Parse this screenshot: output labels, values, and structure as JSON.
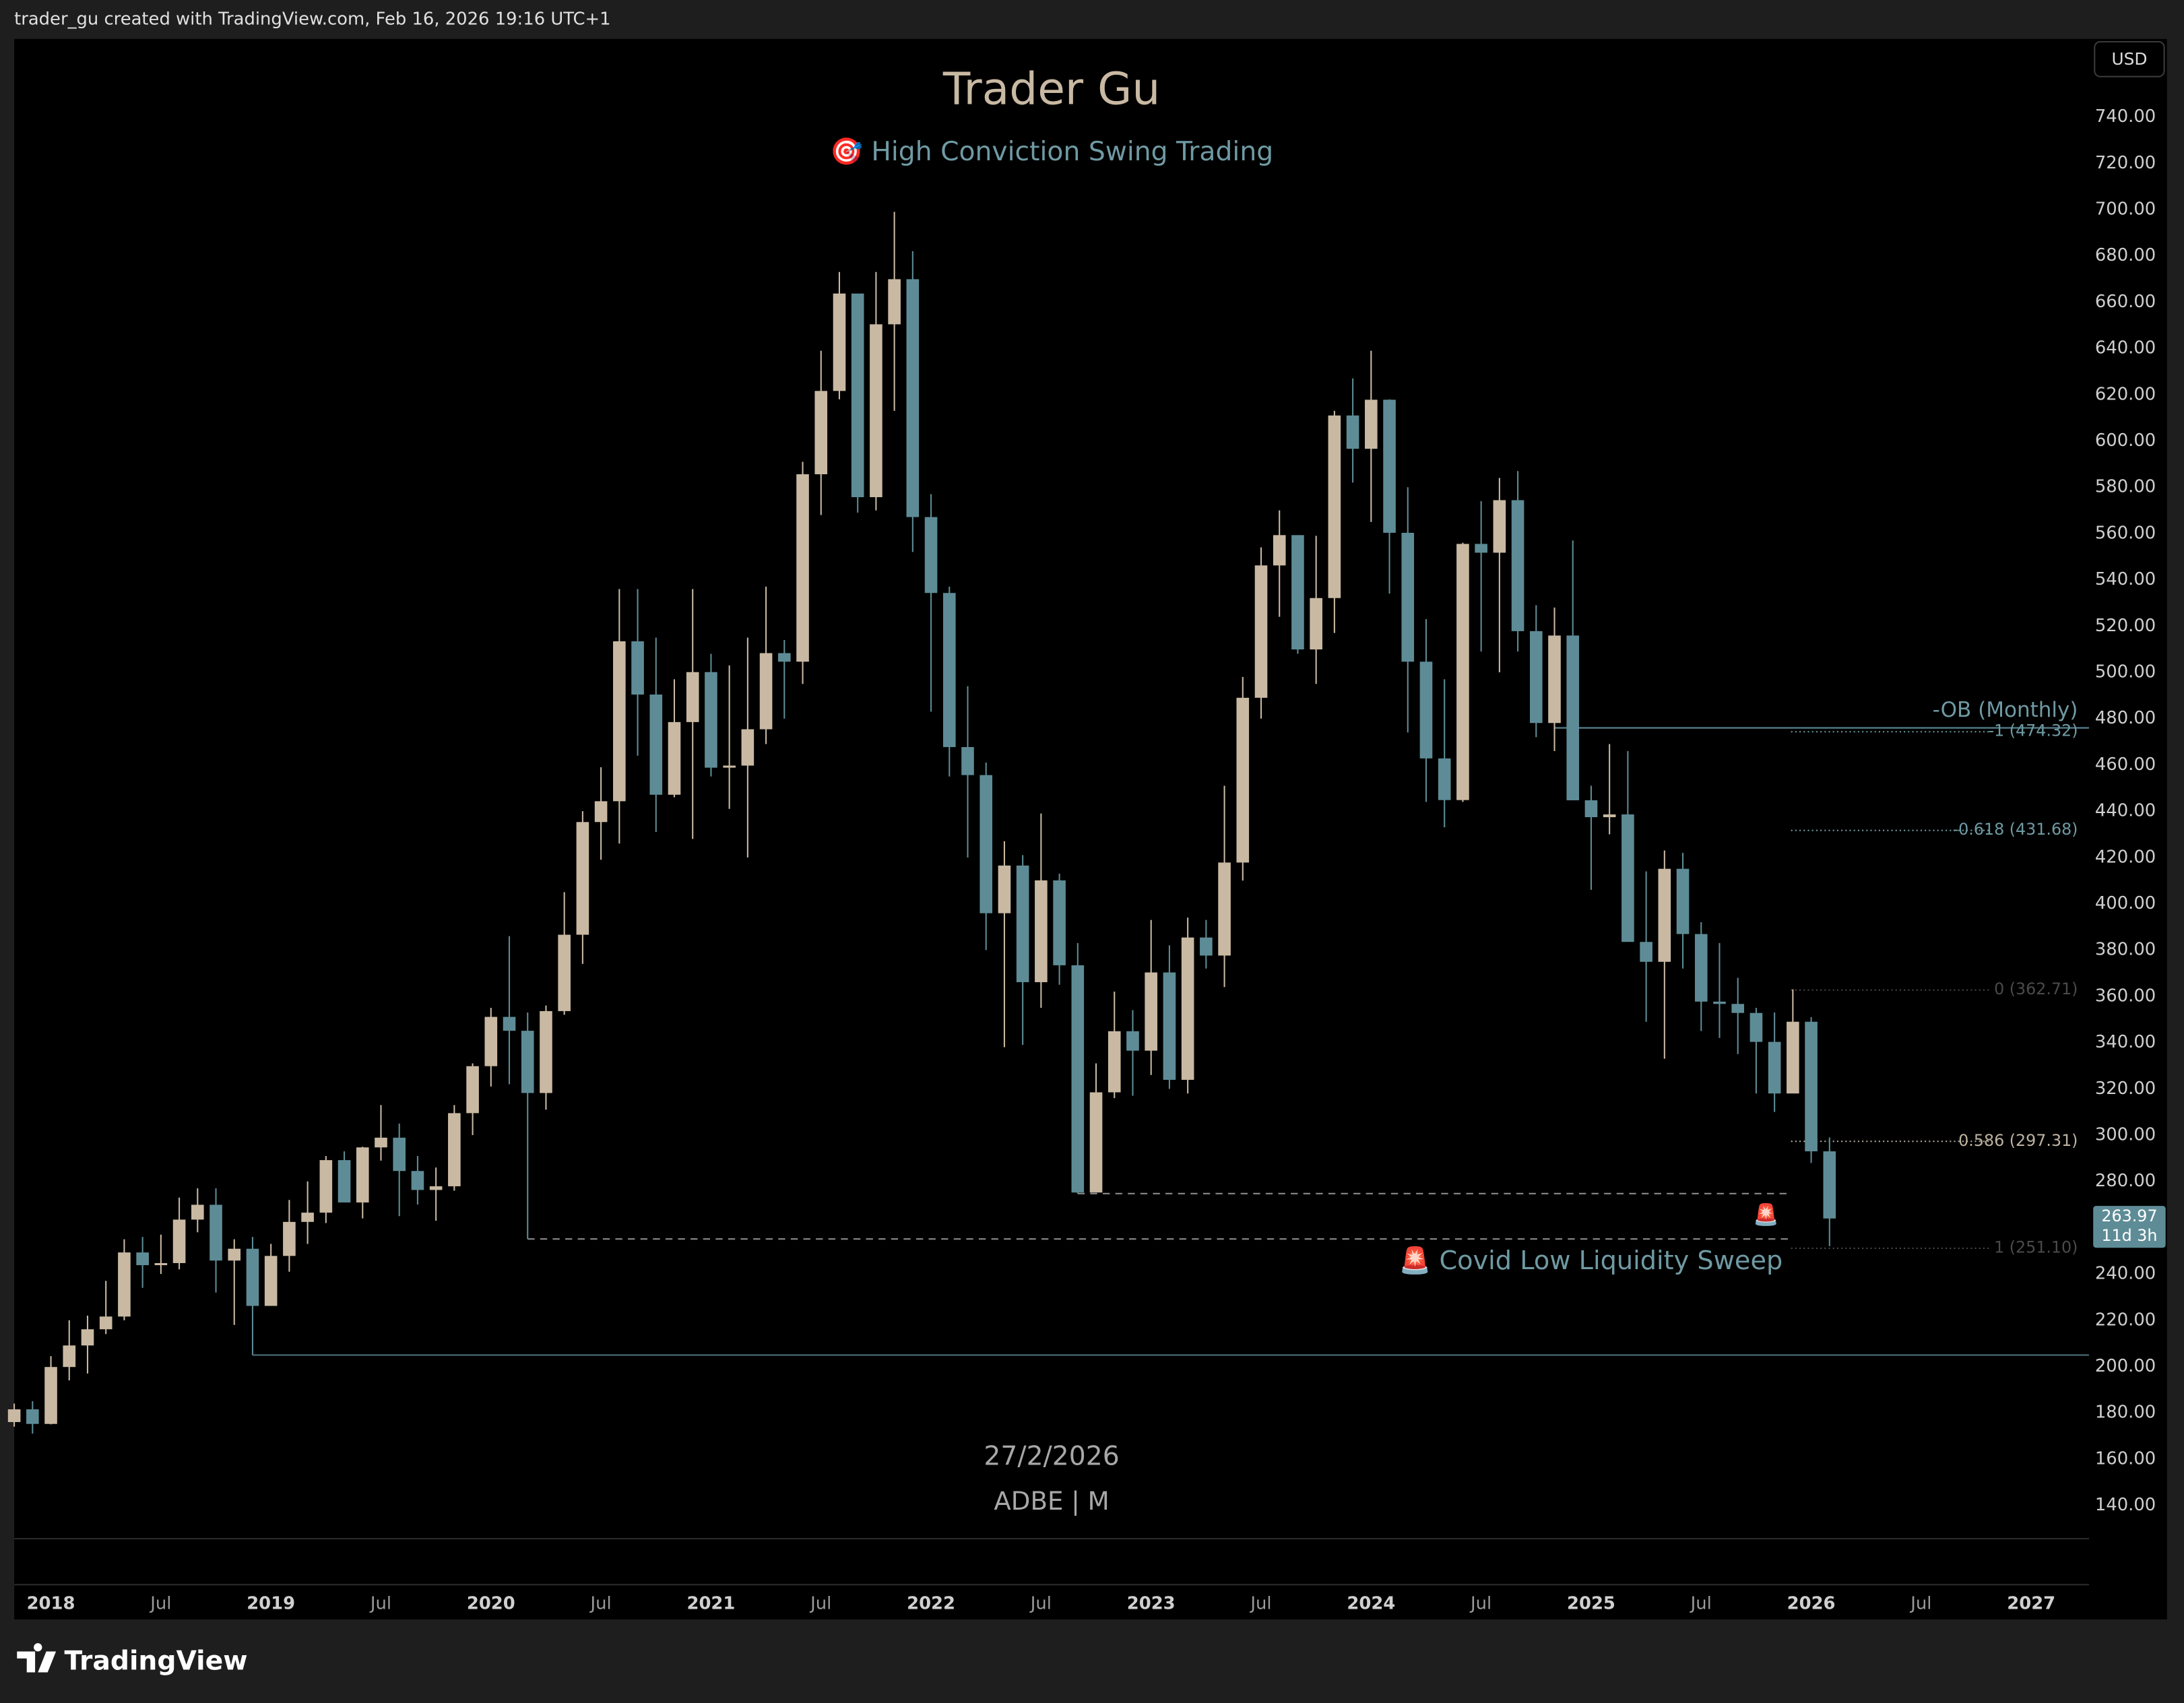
{
  "header": "trader_gu created with TradingView.com, Feb 16, 2026 19:16 UTC+1",
  "currency": "USD",
  "brand": "TradingView",
  "chart_data": {
    "type": "candlestick",
    "title": "Trader Gu",
    "subtitle": "🎯 High Conviction Swing Trading",
    "date_label": "27/2/2026",
    "symbol": "ADBE | M",
    "up_color": "#c9b9a3",
    "down_color": "#5e8c96",
    "xlim": [
      "2017-11",
      "2027-04"
    ],
    "ylim": [
      125.6,
      773.7
    ],
    "grid": false,
    "yticks": [
      {
        "value": 740,
        "label": "740.00"
      },
      {
        "value": 720,
        "label": "720.00"
      },
      {
        "value": 700,
        "label": "700.00"
      },
      {
        "value": 680,
        "label": "680.00"
      },
      {
        "value": 660,
        "label": "660.00"
      },
      {
        "value": 640,
        "label": "640.00"
      },
      {
        "value": 620,
        "label": "620.00"
      },
      {
        "value": 600,
        "label": "600.00"
      },
      {
        "value": 580,
        "label": "580.00"
      },
      {
        "value": 560,
        "label": "560.00"
      },
      {
        "value": 540,
        "label": "540.00"
      },
      {
        "value": 520,
        "label": "520.00"
      },
      {
        "value": 500,
        "label": "500.00"
      },
      {
        "value": 480,
        "label": "480.00"
      },
      {
        "value": 460,
        "label": "460.00"
      },
      {
        "value": 440,
        "label": "440.00"
      },
      {
        "value": 420,
        "label": "420.00"
      },
      {
        "value": 400,
        "label": "400.00"
      },
      {
        "value": 380,
        "label": "380.00"
      },
      {
        "value": 360,
        "label": "360.00"
      },
      {
        "value": 340,
        "label": "340.00"
      },
      {
        "value": 320,
        "label": "320.00"
      },
      {
        "value": 300,
        "label": "300.00"
      },
      {
        "value": 280,
        "label": "280.00"
      },
      {
        "value": 260,
        "label": "260.00"
      },
      {
        "value": 240,
        "label": "240.00"
      },
      {
        "value": 220,
        "label": "220.00"
      },
      {
        "value": 200,
        "label": "200.00"
      },
      {
        "value": 180,
        "label": "180.00"
      },
      {
        "value": 160,
        "label": "160.00"
      },
      {
        "value": 140,
        "label": "140.00"
      }
    ],
    "xticks": [
      {
        "value": "2018-01",
        "label": "2018"
      },
      {
        "value": "2018-07",
        "label": "Jul"
      },
      {
        "value": "2019-01",
        "label": "2019"
      },
      {
        "value": "2019-07",
        "label": "Jul"
      },
      {
        "value": "2020-01",
        "label": "2020"
      },
      {
        "value": "2020-07",
        "label": "Jul"
      },
      {
        "value": "2021-01",
        "label": "2021"
      },
      {
        "value": "2021-07",
        "label": "Jul"
      },
      {
        "value": "2022-01",
        "label": "2022"
      },
      {
        "value": "2022-07",
        "label": "Jul"
      },
      {
        "value": "2023-01",
        "label": "2023"
      },
      {
        "value": "2023-07",
        "label": "Jul"
      },
      {
        "value": "2024-01",
        "label": "2024"
      },
      {
        "value": "2024-07",
        "label": "Jul"
      },
      {
        "value": "2025-01",
        "label": "2025"
      },
      {
        "value": "2025-07",
        "label": "Jul"
      },
      {
        "value": "2026-01",
        "label": "2026"
      },
      {
        "value": "2026-07",
        "label": "Jul"
      },
      {
        "value": "2027-01",
        "label": "2027"
      }
    ],
    "candles": {
      "x": [
        "2017-11",
        "2017-12",
        "2018-01",
        "2018-02",
        "2018-03",
        "2018-04",
        "2018-05",
        "2018-06",
        "2018-07",
        "2018-08",
        "2018-09",
        "2018-10",
        "2018-11",
        "2018-12",
        "2019-01",
        "2019-02",
        "2019-03",
        "2019-04",
        "2019-05",
        "2019-06",
        "2019-07",
        "2019-08",
        "2019-09",
        "2019-10",
        "2019-11",
        "2019-12",
        "2020-01",
        "2020-02",
        "2020-03",
        "2020-04",
        "2020-05",
        "2020-06",
        "2020-07",
        "2020-08",
        "2020-09",
        "2020-10",
        "2020-11",
        "2020-12",
        "2021-01",
        "2021-02",
        "2021-03",
        "2021-04",
        "2021-05",
        "2021-06",
        "2021-07",
        "2021-08",
        "2021-09",
        "2021-10",
        "2021-11",
        "2021-12",
        "2022-01",
        "2022-02",
        "2022-03",
        "2022-04",
        "2022-05",
        "2022-06",
        "2022-07",
        "2022-08",
        "2022-09",
        "2022-10",
        "2022-11",
        "2022-12",
        "2023-01",
        "2023-02",
        "2023-03",
        "2023-04",
        "2023-05",
        "2023-06",
        "2023-07",
        "2023-08",
        "2023-09",
        "2023-10",
        "2023-11",
        "2023-12",
        "2024-01",
        "2024-02",
        "2024-03",
        "2024-04",
        "2024-05",
        "2024-06",
        "2024-07",
        "2024-08",
        "2024-09",
        "2024-10",
        "2024-11",
        "2024-12",
        "2025-01",
        "2025-02",
        "2025-03",
        "2025-04",
        "2025-05",
        "2025-06",
        "2025-07",
        "2025-08",
        "2025-09",
        "2025-10",
        "2025-11",
        "2025-12",
        "2026-01",
        "2026-02"
      ],
      "open": [
        176,
        181.5,
        175.2,
        199.8,
        209.1,
        216.1,
        221.6,
        249.3,
        243.8,
        244.7,
        263.5,
        269.9,
        245.8,
        250.9,
        226.2,
        247.8,
        262.5,
        266.5,
        289.2,
        270.9,
        294.7,
        298.9,
        284.5,
        276.3,
        277.9,
        309.5,
        329.8,
        351.1,
        345.1,
        318.2,
        353.6,
        386.6,
        435.3,
        444.3,
        513.4,
        490.4,
        447.1,
        478.5,
        500.1,
        458.8,
        459.7,
        475.4,
        508.3,
        504.6,
        585.6,
        621.6,
        663.7,
        575.7,
        650.4,
        669.9,
        567.1,
        534.3,
        467.7,
        455.6,
        395.9,
        416.5,
        366.1,
        410.1,
        373.4,
        275.2,
        318.5,
        344.9,
        336.5,
        370.3,
        323.9,
        385.4,
        377.6,
        417.8,
        489.0,
        546.2,
        559.3,
        509.9,
        532.1,
        611.0,
        596.6,
        617.8,
        560.3,
        504.6,
        462.8,
        444.8,
        555.5,
        551.7,
        574.4,
        517.8,
        478.1,
        515.9,
        444.7,
        437.4,
        438.6,
        383.5,
        374.9,
        415.1,
        386.9,
        357.7,
        356.7,
        352.8,
        340.3,
        318.0,
        349.0,
        293.0
      ],
      "high": [
        184,
        185,
        204.5,
        220,
        222,
        237,
        255,
        256,
        257,
        273,
        277,
        277,
        255,
        256,
        253,
        272,
        280,
        291,
        293,
        295,
        313,
        305,
        291,
        286,
        313,
        331,
        355,
        386,
        353,
        356,
        405,
        440,
        459,
        536,
        536,
        515,
        497,
        536,
        508,
        503,
        515,
        537,
        514,
        591,
        639,
        673,
        653,
        673,
        699,
        682,
        577,
        537,
        494,
        461,
        427,
        421,
        439,
        413,
        383,
        331,
        362,
        354,
        393,
        382,
        394,
        393,
        451,
        498,
        554,
        570,
        553,
        559,
        613,
        627,
        639,
        618,
        580,
        523,
        497,
        556,
        574,
        584,
        587,
        529,
        528,
        557,
        451,
        469,
        466,
        414,
        423,
        422,
        392,
        383,
        368,
        355,
        353,
        363,
        351,
        299
      ],
      "low": [
        174,
        171,
        175,
        194,
        197,
        214,
        220,
        234,
        240,
        242,
        258,
        232,
        218,
        204.95,
        241,
        241,
        253,
        262,
        271,
        264,
        289,
        265,
        270,
        263,
        276,
        300,
        321,
        322,
        255.13,
        311,
        352,
        374,
        419,
        426,
        464,
        431,
        446,
        428,
        455,
        441,
        420,
        469,
        480,
        495,
        568,
        618,
        569,
        570,
        613,
        552,
        483,
        455,
        420,
        380,
        338,
        339,
        355,
        365,
        274.73,
        278,
        316,
        317,
        326,
        320,
        318,
        372,
        364,
        410,
        480,
        524,
        508,
        495,
        517,
        582,
        565,
        534,
        474,
        444,
        433,
        444,
        509,
        500,
        509,
        472,
        466,
        469,
        406,
        430,
        408,
        349,
        333,
        372,
        345,
        342,
        335,
        318,
        310,
        330,
        288,
        252
      ],
      "close": [
        181.5,
        175.2,
        199.8,
        209.1,
        216.1,
        221.6,
        249.3,
        243.8,
        244.7,
        263.5,
        269.9,
        245.8,
        250.9,
        226.2,
        247.8,
        262.5,
        266.5,
        289.2,
        270.9,
        294.7,
        298.9,
        284.5,
        276.3,
        277.9,
        309.5,
        329.8,
        351.1,
        345.1,
        318.2,
        353.6,
        386.6,
        435.3,
        444.3,
        513.4,
        490.4,
        447.1,
        478.5,
        500.1,
        458.8,
        459.7,
        475.4,
        508.3,
        504.6,
        585.6,
        621.6,
        663.7,
        575.7,
        650.4,
        669.9,
        567.1,
        534.3,
        467.7,
        455.6,
        395.9,
        416.5,
        366.1,
        410.1,
        373.4,
        275.2,
        318.5,
        344.9,
        336.5,
        370.3,
        323.9,
        385.4,
        377.6,
        417.8,
        489.0,
        546.2,
        559.3,
        509.9,
        532.1,
        611.0,
        596.6,
        617.8,
        560.3,
        504.6,
        462.8,
        444.8,
        555.5,
        551.7,
        574.4,
        517.8,
        478.1,
        515.9,
        444.7,
        437.4,
        438.6,
        383.5,
        374.9,
        415.1,
        386.9,
        357.7,
        356.7,
        352.8,
        340.3,
        318.0,
        349.0,
        293.0,
        263.97
      ]
    },
    "countdown": "11d 3h",
    "order_block": {
      "label": "-OB (Monthly)",
      "value": 476,
      "from": "2024-11",
      "color": "#4f7580"
    },
    "fib_levels": [
      {
        "value": 474.32,
        "label": "-1 (474.32)",
        "color": "#6f9aa3"
      },
      {
        "value": 431.68,
        "label": "-0.618 (431.68)",
        "color": "#6f9aa3"
      },
      {
        "value": 362.71,
        "label": "0 (362.71)",
        "color": "#4a4a4a"
      },
      {
        "value": 297.31,
        "label": "0.586 (297.31)",
        "color": "#bdb2a2"
      },
      {
        "value": 251.1,
        "label": "1 (251.10)",
        "color": "#4a4a4a"
      }
    ],
    "sweep_lines": [
      {
        "value": 274.73,
        "from": "2022-09"
      },
      {
        "value": 255.13,
        "from": "2020-03"
      }
    ],
    "support_line": {
      "value": 204.95,
      "from": "2018-12",
      "color": "#4f7580"
    },
    "sweep_label": "🚨 Covid Low Liquidity Sweep",
    "alert_icon": "🚨"
  }
}
